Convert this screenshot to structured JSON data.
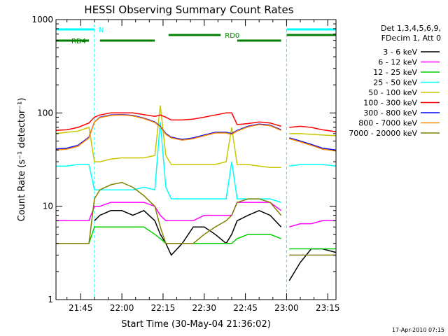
{
  "chart_data": {
    "type": "line",
    "title": "HESSI Observing Summary Count Rates",
    "xlabel": "Start Time (30-May-04 21:36:02)",
    "ylabel": "Count Rate (s⁻¹ detector⁻¹)",
    "yscale": "log",
    "ylim": [
      1,
      1000
    ],
    "xlim": [
      "21:36",
      "23:18"
    ],
    "x_ticks": [
      "21:45",
      "22:00",
      "22:15",
      "22:30",
      "22:45",
      "23:00",
      "23:15"
    ],
    "y_ticks": [
      "1",
      "10",
      "100",
      "1000"
    ],
    "grid": false,
    "legend_position": "right",
    "legend_header": [
      "Det 1,3,4,5,6,9,",
      "FDecim 1, Att 0"
    ],
    "footer_timestamp": "17-Apr-2010 07:15",
    "time_grid": [
      "21:36",
      "21:40",
      "21:44",
      "21:48",
      "21:50",
      "21:52",
      "21:56",
      "22:00",
      "22:04",
      "22:08",
      "22:12",
      "22:14",
      "22:16",
      "22:18",
      "22:22",
      "22:26",
      "22:30",
      "22:34",
      "22:38",
      "22:40",
      "22:42",
      "22:46",
      "22:50",
      "22:54",
      "22:58",
      "22:59",
      "23:01",
      "23:05",
      "23:09",
      "23:13",
      "23:18"
    ],
    "series": [
      {
        "name": "3 - 6 keV",
        "color": "#000000",
        "values": [
          null,
          null,
          null,
          null,
          7,
          8,
          9,
          9,
          8,
          9,
          7,
          5,
          4,
          3,
          4,
          6,
          6,
          5,
          4,
          5,
          7,
          8,
          9,
          8,
          6,
          null,
          1.6,
          2.5,
          3.5,
          3.5,
          3.2
        ]
      },
      {
        "name": "6 - 12 keV",
        "color": "#ff00ff",
        "values": [
          7,
          7,
          7,
          7,
          10,
          10,
          11,
          11,
          11,
          11,
          10,
          8,
          7,
          7,
          7,
          7,
          8,
          8,
          8,
          8,
          11,
          11,
          11,
          11,
          9,
          null,
          6,
          6.5,
          6.5,
          7,
          7
        ]
      },
      {
        "name": "12 - 25 keV",
        "color": "#00d000",
        "values": [
          4,
          4,
          4,
          4,
          6,
          6,
          6,
          6,
          6,
          6,
          5,
          4.5,
          4,
          4,
          4,
          4,
          4,
          4,
          4,
          4,
          4.5,
          5,
          5,
          5,
          4.5,
          null,
          3.5,
          3.5,
          3.5,
          3.5,
          3.5
        ]
      },
      {
        "name": "25 - 50 keV",
        "color": "#00ffff",
        "values": [
          27,
          27,
          28,
          28,
          15,
          15,
          15,
          15,
          15,
          16,
          15,
          80,
          16,
          12,
          12,
          12,
          12,
          12,
          12,
          30,
          12,
          12,
          12,
          12,
          11,
          null,
          27,
          28,
          28,
          28,
          27
        ]
      },
      {
        "name": "50 - 100 keV",
        "color": "#c8c800",
        "values": [
          60,
          62,
          64,
          70,
          30,
          30,
          32,
          33,
          33,
          33,
          35,
          120,
          35,
          28,
          28,
          28,
          28,
          28,
          30,
          70,
          28,
          28,
          27,
          26,
          26,
          null,
          60,
          60,
          59,
          58,
          57
        ]
      },
      {
        "name": "100 - 300 keV",
        "color": "#ff0000",
        "values": [
          65,
          66,
          70,
          78,
          90,
          95,
          100,
          100,
          100,
          96,
          92,
          95,
          90,
          84,
          84,
          86,
          90,
          95,
          100,
          100,
          75,
          77,
          80,
          78,
          72,
          null,
          70,
          72,
          70,
          66,
          63
        ]
      },
      {
        "name": "300 - 800 keV",
        "color": "#0000ff",
        "values": [
          41,
          42,
          45,
          55,
          80,
          90,
          95,
          96,
          94,
          88,
          80,
          72,
          60,
          55,
          52,
          54,
          58,
          62,
          62,
          60,
          65,
          72,
          76,
          74,
          66,
          null,
          54,
          50,
          46,
          42,
          40
        ]
      },
      {
        "name": "800 - 7000 keV",
        "color": "#ff8c00",
        "values": [
          40,
          41,
          44,
          54,
          80,
          89,
          94,
          95,
          93,
          87,
          79,
          71,
          59,
          54,
          51,
          53,
          57,
          61,
          61,
          59,
          64,
          71,
          75,
          73,
          65,
          null,
          53,
          49,
          45,
          41,
          39
        ]
      },
      {
        "name": "7000 - 20000 keV",
        "color": "#808000",
        "values": [
          4,
          4,
          4,
          4,
          12,
          15,
          17,
          18,
          16,
          13,
          10,
          6,
          4,
          4,
          4,
          4,
          5,
          6,
          7,
          8,
          11,
          12,
          12,
          11,
          8,
          null,
          3,
          3,
          3,
          3,
          3
        ]
      }
    ],
    "flags": [
      {
        "name": "N",
        "color": "#00ffff",
        "intervals": [
          [
            "21:36",
            "21:50"
          ],
          [
            "23:00",
            "23:18"
          ]
        ]
      },
      {
        "name": "RD0",
        "color": "#008000",
        "intervals": [
          [
            "22:17",
            "22:36"
          ],
          [
            "23:00",
            "23:18"
          ]
        ]
      },
      {
        "name": "RD4",
        "color": "#008000",
        "intervals": [
          [
            "21:36",
            "21:48"
          ],
          [
            "21:52",
            "22:12"
          ],
          [
            "22:42",
            "22:58"
          ]
        ]
      }
    ]
  }
}
